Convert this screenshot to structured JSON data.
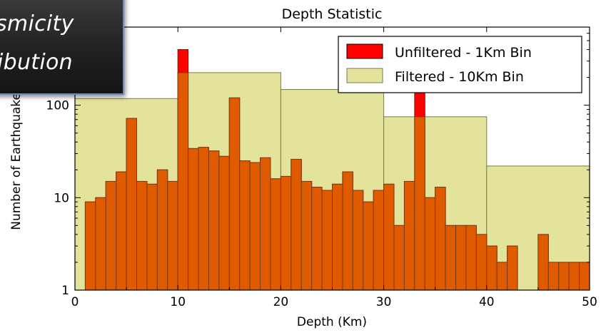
{
  "overlay": {
    "line1": "smicity",
    "line2": "ibution"
  },
  "colors": {
    "unfiltered": "#ff0000",
    "filtered": "#e3e39c",
    "overlap": "#e05a00",
    "edge": "#7a7a50"
  },
  "chart_data": {
    "type": "bar",
    "title": "Depth Statistic",
    "xlabel": "Depth (Km)",
    "ylabel": "Number of Earthquakes",
    "yscale": "log",
    "xlim": [
      0,
      50
    ],
    "ylim": [
      1,
      700
    ],
    "grid": false,
    "legend_position": "top-right",
    "xticks": [
      0,
      10,
      20,
      30,
      40,
      50
    ],
    "xtick_labels": [
      "0",
      "10",
      "20",
      "30",
      "40",
      "50"
    ],
    "yticks": [
      1,
      10,
      100
    ],
    "ytick_labels": [
      "1",
      "10",
      "100"
    ],
    "series": [
      {
        "name": "Unfiltered - 1Km Bin",
        "bin_width": 1,
        "bin_starts": [
          0,
          1,
          2,
          3,
          4,
          5,
          6,
          7,
          8,
          9,
          10,
          11,
          12,
          13,
          14,
          15,
          16,
          17,
          18,
          19,
          20,
          21,
          22,
          23,
          24,
          25,
          26,
          27,
          28,
          29,
          30,
          31,
          32,
          33,
          34,
          35,
          36,
          37,
          38,
          39,
          40,
          41,
          42,
          43,
          44,
          45,
          46,
          47,
          48,
          49
        ],
        "values": [
          0,
          9,
          10,
          15,
          19,
          72,
          15,
          14,
          20,
          15,
          400,
          34,
          35,
          32,
          28,
          120,
          25,
          24,
          27,
          16,
          17,
          26,
          15,
          13,
          12,
          14,
          19,
          12,
          9,
          12,
          14,
          5,
          15,
          210,
          10,
          13,
          5,
          5,
          5,
          4,
          3,
          2,
          3,
          0,
          0,
          4,
          2,
          2,
          2,
          2
        ]
      },
      {
        "name": "Filtered - 10Km Bin",
        "bin_width": 10,
        "bin_starts": [
          0,
          10,
          20,
          30,
          40
        ],
        "values": [
          118,
          225,
          148,
          75,
          22
        ]
      }
    ],
    "overlap_values": [
      0,
      9,
      10,
      15,
      19,
      72,
      15,
      14,
      20,
      15,
      225,
      34,
      35,
      32,
      28,
      120,
      25,
      24,
      27,
      16,
      17,
      26,
      15,
      13,
      12,
      14,
      19,
      12,
      9,
      12,
      14,
      5,
      15,
      75,
      10,
      13,
      5,
      5,
      5,
      4,
      3,
      2,
      3,
      0,
      0,
      4,
      2,
      2,
      2,
      2
    ]
  }
}
